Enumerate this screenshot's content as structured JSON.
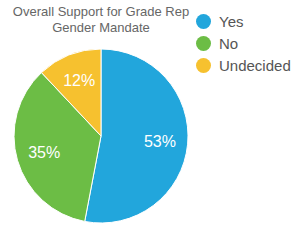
{
  "chart_data": {
    "type": "pie",
    "title": "Overall Support for Grade Rep Gender Mandate",
    "categories": [
      "Yes",
      "No",
      "Undecided"
    ],
    "values": [
      53,
      35,
      12
    ],
    "value_labels": [
      "53%",
      "35%",
      "12%"
    ],
    "colors": [
      "#22a6dc",
      "#6cbd45",
      "#f6c12f"
    ],
    "data_labels": true,
    "legend": "top-right"
  }
}
